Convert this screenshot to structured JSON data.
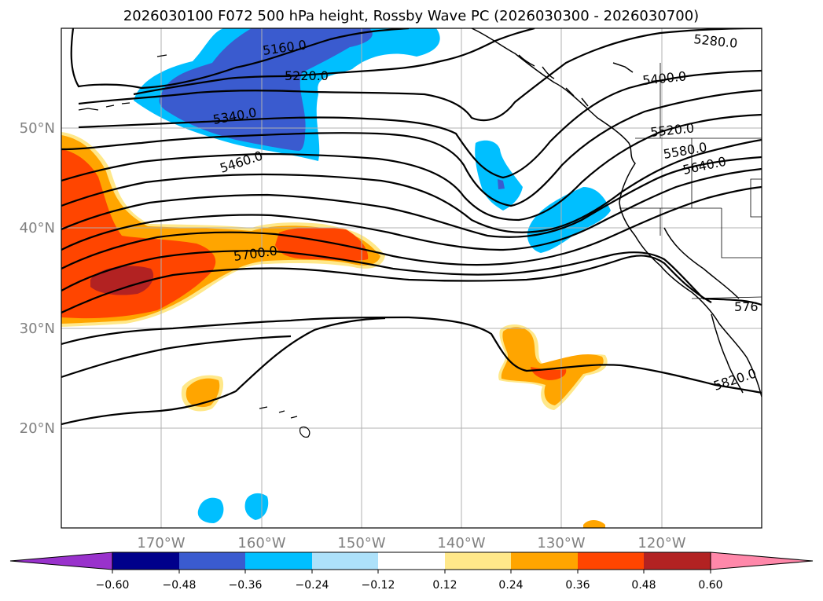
{
  "title": "2026030100 F072 500 hPa height, Rossby Wave PC (2026030300 - 2026030700)",
  "latitude_labels": [
    "50°N",
    "40°N",
    "30°N",
    "20°N"
  ],
  "longitude_labels": [
    "170°W",
    "160°W",
    "150°W",
    "140°W",
    "130°W",
    "120°W"
  ],
  "colorbar": {
    "ticks": [
      "−0.60",
      "−0.48",
      "−0.36",
      "−0.24",
      "−0.12",
      "0.12",
      "0.24",
      "0.36",
      "0.48",
      "0.60"
    ],
    "colors": [
      "#9932cc",
      "#00008b",
      "#3a5bcf",
      "#00bfff",
      "#ade1fa",
      "#ffffff",
      "#ffe88a",
      "#ffa500",
      "#ff4500",
      "#b22222",
      "#ff88aa"
    ]
  },
  "contour_labels": [
    "5160.0",
    "5220.0",
    "5280.0",
    "5340.0",
    "5400.0",
    "5460.0",
    "5520.0",
    "5580.0",
    "5640.0",
    "5700.0",
    "576",
    "5820.0"
  ]
}
